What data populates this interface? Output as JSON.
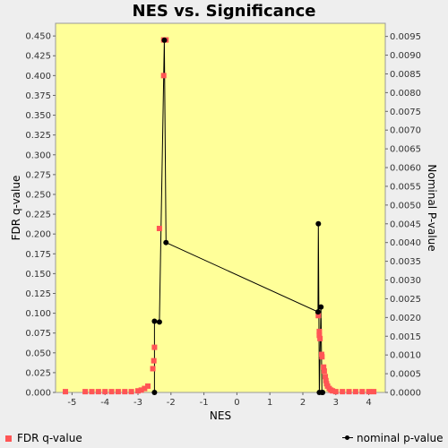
{
  "chart_data": {
    "type": "scatter",
    "title": "NES vs. Significance",
    "xlabel": "NES",
    "ylabel_left": "FDR q-value",
    "ylabel_right": "Nominal P-value",
    "xlim": [
      -5.5,
      4.5
    ],
    "ylim_left": [
      0,
      0.466
    ],
    "ylim_right": [
      0,
      0.00985
    ],
    "x_ticks": [
      "-5",
      "-4",
      "-3",
      "-2",
      "-1",
      "0",
      "1",
      "2",
      "3",
      "4"
    ],
    "y_left_ticks": [
      "0.000",
      "0.025",
      "0.050",
      "0.075",
      "0.100",
      "0.125",
      "0.150",
      "0.175",
      "0.200",
      "0.225",
      "0.250",
      "0.275",
      "0.300",
      "0.325",
      "0.350",
      "0.375",
      "0.400",
      "0.425",
      "0.450"
    ],
    "y_right_ticks": [
      "0.0000",
      "0.0005",
      "0.0010",
      "0.0015",
      "0.0020",
      "0.0025",
      "0.0030",
      "0.0035",
      "0.0040",
      "0.0045",
      "0.0050",
      "0.0055",
      "0.0060",
      "0.0065",
      "0.0070",
      "0.0075",
      "0.0080",
      "0.0085",
      "0.0090",
      "0.0095"
    ],
    "background": "#FFFF99",
    "series": [
      {
        "name": "FDR q-value",
        "axis": "left",
        "color": "#FF5555",
        "marker": "square",
        "points": [
          [
            -5.2,
            0.001
          ],
          [
            -4.6,
            0.001
          ],
          [
            -4.4,
            0.001
          ],
          [
            -4.2,
            0.001
          ],
          [
            -4.0,
            0.001
          ],
          [
            -3.8,
            0.001
          ],
          [
            -3.6,
            0.001
          ],
          [
            -3.4,
            0.001
          ],
          [
            -3.2,
            0.001
          ],
          [
            -3.0,
            0.002
          ],
          [
            -2.9,
            0.003
          ],
          [
            -2.8,
            0.005
          ],
          [
            -2.7,
            0.008
          ],
          [
            -2.55,
            0.03
          ],
          [
            -2.52,
            0.04
          ],
          [
            -2.5,
            0.057
          ],
          [
            -2.35,
            0.207
          ],
          [
            -2.22,
            0.4
          ],
          [
            -2.22,
            0.445
          ],
          [
            -2.15,
            0.445
          ],
          [
            2.47,
            0.097
          ],
          [
            2.5,
            0.077
          ],
          [
            2.5,
            0.072
          ],
          [
            2.52,
            0.068
          ],
          [
            2.57,
            0.048
          ],
          [
            2.58,
            0.045
          ],
          [
            2.63,
            0.032
          ],
          [
            2.65,
            0.027
          ],
          [
            2.68,
            0.02
          ],
          [
            2.7,
            0.015
          ],
          [
            2.72,
            0.011
          ],
          [
            2.75,
            0.008
          ],
          [
            2.8,
            0.005
          ],
          [
            2.85,
            0.003
          ],
          [
            2.9,
            0.002
          ],
          [
            3.0,
            0.001
          ],
          [
            3.2,
            0.001
          ],
          [
            3.4,
            0.001
          ],
          [
            3.6,
            0.001
          ],
          [
            3.8,
            0.001
          ],
          [
            4.0,
            0.001
          ],
          [
            4.15,
            0.001
          ]
        ]
      },
      {
        "name": "nominal p-value",
        "axis": "right",
        "color": "#000000",
        "marker": "circle",
        "line": true,
        "points": [
          [
            -2.5,
            0.0
          ],
          [
            -2.5,
            0.0019
          ],
          [
            -2.35,
            0.00188
          ],
          [
            -2.2,
            0.0094
          ],
          [
            -2.15,
            0.004
          ],
          [
            2.46,
            0.00215
          ],
          [
            2.47,
            0.0045
          ],
          [
            2.5,
            0.0
          ],
          [
            2.55,
            0.00228
          ],
          [
            2.58,
            0.0
          ],
          [
            2.6,
            0.0
          ]
        ]
      }
    ]
  },
  "legend": {
    "fdr_label": "FDR q-value",
    "nominal_label": "nominal p-value"
  }
}
